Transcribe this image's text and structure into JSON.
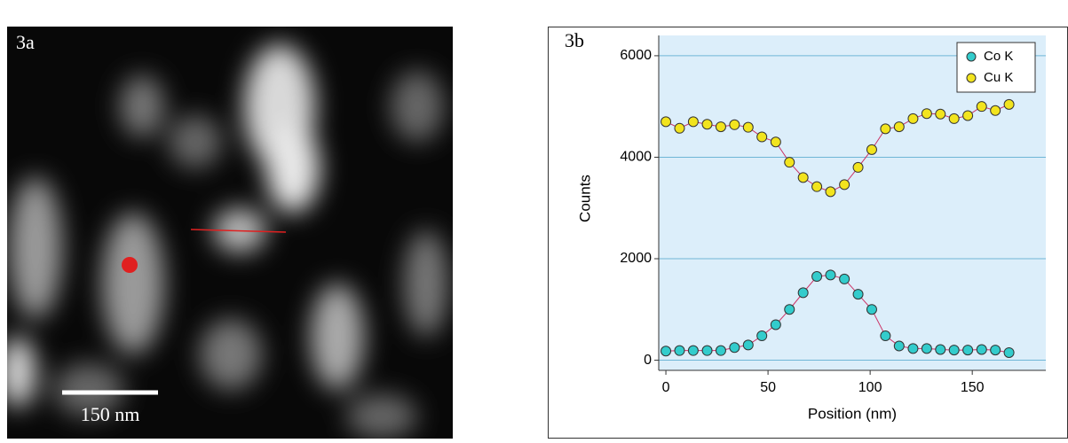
{
  "image": {
    "label": "3a",
    "scale_bar": "150 nm"
  },
  "chart_data": {
    "type": "line",
    "panel_label": "3b",
    "x_label": "Position (nm)",
    "y_label": "Counts",
    "x": [
      0,
      6.7,
      13.4,
      20.2,
      26.9,
      33.6,
      40.3,
      47,
      53.8,
      60.5,
      67.2,
      73.9,
      80.6,
      87.4,
      94.1,
      100.8,
      107.5,
      114.2,
      121,
      127.7,
      134.4,
      141.1,
      147.8,
      154.6,
      161.3,
      168
    ],
    "series": [
      {
        "name": "Co K",
        "color": "#33cccc",
        "values": [
          180,
          190,
          190,
          190,
          190,
          250,
          300,
          480,
          700,
          1000,
          1330,
          1650,
          1680,
          1600,
          1300,
          1000,
          480,
          280,
          230,
          230,
          210,
          200,
          200,
          210,
          200,
          150
        ]
      },
      {
        "name": "Cu K",
        "color": "#f2e41e",
        "values": [
          4700,
          4570,
          4700,
          4650,
          4600,
          4640,
          4590,
          4400,
          4300,
          3900,
          3600,
          3420,
          3320,
          3460,
          3800,
          4150,
          4560,
          4600,
          4760,
          4860,
          4850,
          4760,
          4820,
          5000,
          4920,
          5040
        ]
      }
    ],
    "line_color": "#cc3366",
    "xlim": [
      -3.5,
      186
    ],
    "ylim": [
      -200,
      6400
    ],
    "xticks": [
      0,
      50,
      100,
      150
    ],
    "yticks": [
      0,
      2000,
      4000,
      6000
    ],
    "grid": true,
    "legend": "top-right"
  }
}
